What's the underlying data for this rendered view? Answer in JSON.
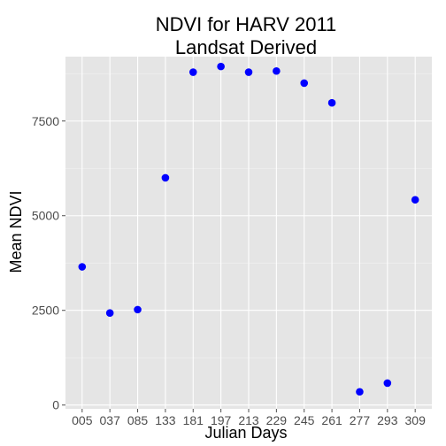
{
  "chart_data": {
    "type": "scatter",
    "title_line1": "NDVI for HARV 2011",
    "title_line2": "Landsat Derived",
    "xlabel": "Julian Days",
    "ylabel": "Mean NDVI",
    "categories": [
      "005",
      "037",
      "085",
      "133",
      "181",
      "197",
      "213",
      "229",
      "245",
      "261",
      "277",
      "293",
      "309"
    ],
    "values": [
      3650,
      2430,
      2520,
      6000,
      8790,
      8940,
      8790,
      8820,
      8500,
      7980,
      350,
      580,
      5420
    ],
    "y_ticks": [
      0,
      2500,
      5000,
      7500
    ],
    "y_tick_labels": [
      "0",
      "2500",
      "5000",
      "7500"
    ],
    "ylim": [
      -100,
      9200
    ],
    "grid": true,
    "point_color": "#0000ff",
    "panel_color": "#e5e5e5",
    "grid_color": "#ffffff"
  }
}
